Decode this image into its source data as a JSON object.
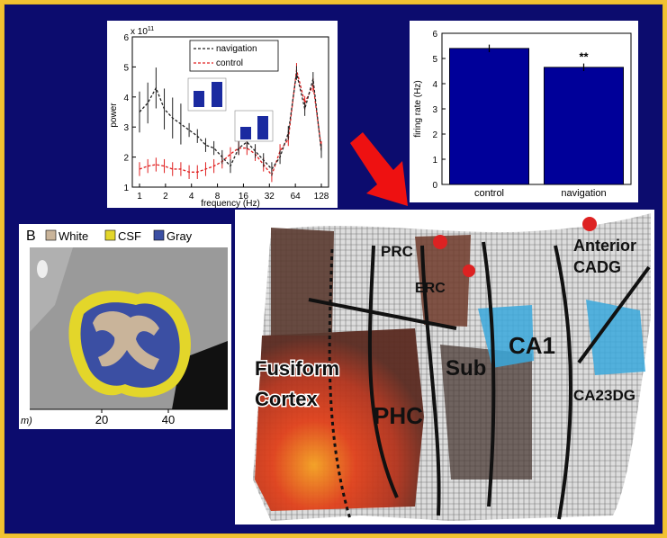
{
  "power_chart": {
    "exponent_label": "x 10",
    "exponent_power": "11",
    "ylabel": "power",
    "xlabel": "frequency (Hz)",
    "yticks": [
      "1",
      "2",
      "3",
      "4",
      "5",
      "6"
    ],
    "xticks": [
      "1",
      "2",
      "4",
      "8",
      "16",
      "32",
      "64",
      "128"
    ],
    "legend": [
      "navigation",
      "control"
    ],
    "colors": {
      "navigation": "#222222",
      "control": "#e02020"
    },
    "series_navigation": [
      3.5,
      3.8,
      4.3,
      3.6,
      3.3,
      3.1,
      2.9,
      2.7,
      2.4,
      2.3,
      2.0,
      1.7,
      2.3,
      2.5,
      2.2,
      1.9,
      1.6,
      2.0,
      2.8,
      4.8,
      3.6,
      4.6,
      2.2
    ],
    "series_control": [
      1.6,
      1.7,
      1.75,
      1.7,
      1.6,
      1.6,
      1.5,
      1.5,
      1.6,
      1.7,
      1.85,
      2.1,
      2.3,
      2.3,
      2.1,
      1.75,
      1.4,
      2.2,
      2.6,
      4.9,
      3.8,
      4.4,
      2.3
    ]
  },
  "firing_chart": {
    "ylabel": "firing rate (Hz)",
    "yticks": [
      "0",
      "1",
      "2",
      "3",
      "4",
      "5",
      "6"
    ],
    "categories": [
      "control",
      "navigation"
    ],
    "values": [
      5.4,
      4.65
    ],
    "significance": "**",
    "bar_color": "#000099"
  },
  "mri_panel": {
    "panel_letter": "B",
    "legend": [
      {
        "label": "White",
        "color": "#c9b49a"
      },
      {
        "label": "CSF",
        "color": "#e3d62a"
      },
      {
        "label": "Gray",
        "color": "#3b4fa3"
      }
    ],
    "axis_fragment": "m)",
    "xticks": [
      "20",
      "40"
    ]
  },
  "flatmap": {
    "labels": {
      "prc": "PRC",
      "erc": "ERC",
      "anterior": "Anterior",
      "cadg": "CADG",
      "fusiform": "Fusiform",
      "cortex": "Cortex",
      "sub": "Sub",
      "ca1": "CA1",
      "phc": "PHC",
      "ca23dg": "CA23DG"
    }
  }
}
